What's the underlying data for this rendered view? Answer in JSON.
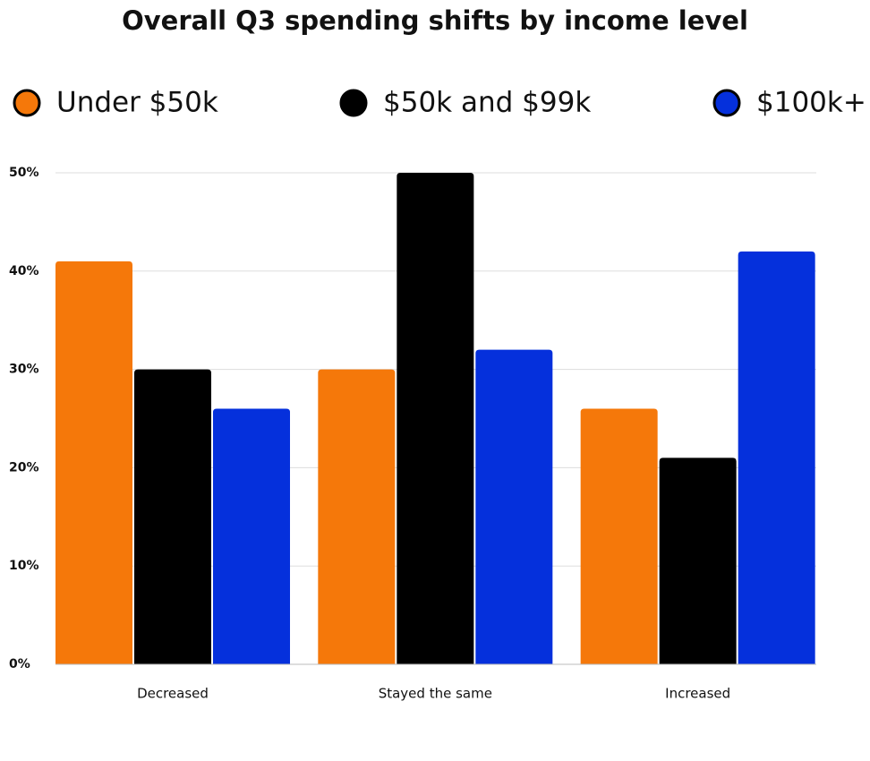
{
  "chart_data": {
    "type": "bar",
    "title": "Overall Q3 spending shifts by income level",
    "categories": [
      "Decreased",
      "Stayed the same",
      "Increased"
    ],
    "series": [
      {
        "name": "Under $50k",
        "color": "#f5780a",
        "values": [
          41,
          30,
          26
        ]
      },
      {
        "name": "$50k and $99k",
        "color": "#000000",
        "values": [
          30,
          50,
          21
        ]
      },
      {
        "name": "$100k+",
        "color": "#0530dc",
        "values": [
          26,
          32,
          42
        ]
      }
    ],
    "ylim": [
      0,
      50
    ],
    "yticks": [
      {
        "value": 0,
        "label": "0%"
      },
      {
        "value": 10,
        "label": "10%"
      },
      {
        "value": 20,
        "label": "20%"
      },
      {
        "value": 30,
        "label": "30%"
      },
      {
        "value": 40,
        "label": "40%"
      },
      {
        "value": 50,
        "label": "50%"
      }
    ],
    "grid": true
  }
}
